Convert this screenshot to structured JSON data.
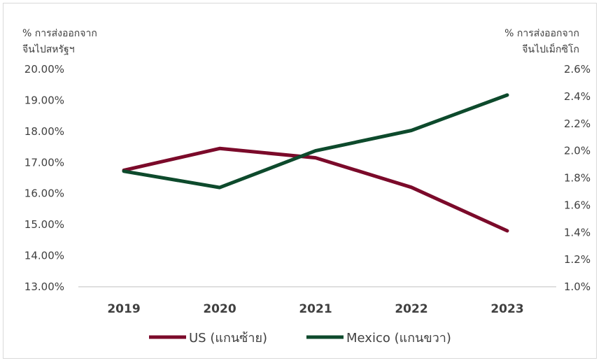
{
  "chart_data": {
    "type": "line",
    "categories": [
      "2019",
      "2020",
      "2021",
      "2022",
      "2023"
    ],
    "y_left": {
      "title_lines": [
        "% การส่งออกจาก",
        "จีนไปสหรัฐฯ"
      ],
      "min": 13,
      "max": 20,
      "step": 1,
      "tick_labels": [
        "20.00%",
        "19.00%",
        "18.00%",
        "17.00%",
        "16.00%",
        "15.00%",
        "14.00%",
        "13.00%"
      ]
    },
    "y_right": {
      "title_lines": [
        "% การส่งออกจาก",
        "จีนไปเม็กซิโก"
      ],
      "min": 1.0,
      "max": 2.6,
      "step": 0.2,
      "tick_labels": [
        "2.6%",
        "2.4%",
        "2.2%",
        "2.0%",
        "1.8%",
        "1.6%",
        "1.4%",
        "1.2%",
        "1.0%"
      ]
    },
    "series": [
      {
        "name": "US (แกนซ้าย)",
        "axis": "left",
        "color": "#7b0a2a",
        "values": [
          16.75,
          17.45,
          17.15,
          16.2,
          14.8
        ]
      },
      {
        "name": "Mexico (แกนขวา)",
        "axis": "right",
        "color": "#0d4a2c",
        "values": [
          1.85,
          1.73,
          2.0,
          2.15,
          2.41
        ]
      }
    ],
    "grid": false,
    "legend_position": "bottom-center"
  }
}
